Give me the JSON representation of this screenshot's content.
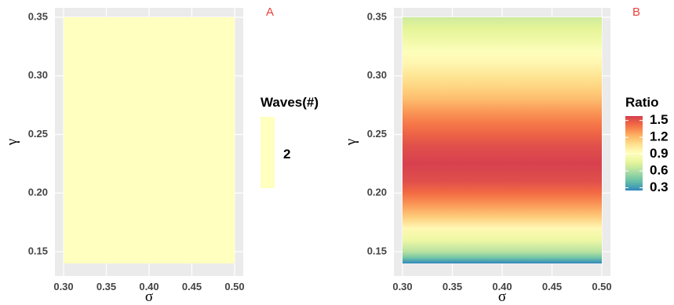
{
  "chart_data": [
    {
      "type": "heatmap",
      "panel_label": "A",
      "xlabel": "σ",
      "ylabel": "γ",
      "xlim": [
        0.3,
        0.5
      ],
      "ylim": [
        0.14,
        0.35
      ],
      "x_ticks": [
        "0.30",
        "0.35",
        "0.40",
        "0.45",
        "0.50"
      ],
      "y_ticks": [
        "0.15",
        "0.20",
        "0.25",
        "0.30",
        "0.35"
      ],
      "legend": {
        "title": "Waves(#)",
        "type": "discrete",
        "entries": [
          {
            "label": "2",
            "color": "#ffffbf"
          }
        ]
      },
      "value": 2,
      "colors": {
        "fill": "#ffffbf",
        "panel_background": "#ebebeb",
        "grid": "#ffffff"
      }
    },
    {
      "type": "heatmap",
      "panel_label": "B",
      "xlabel": "σ",
      "ylabel": "γ",
      "xlim": [
        0.3,
        0.5
      ],
      "ylim": [
        0.14,
        0.35
      ],
      "x_ticks": [
        "0.30",
        "0.35",
        "0.40",
        "0.45",
        "0.50"
      ],
      "y_ticks": [
        "0.15",
        "0.20",
        "0.25",
        "0.30",
        "0.35"
      ],
      "legend": {
        "title": "Ratio",
        "type": "continuous",
        "palette": "Spectral",
        "labels": [
          "1.5",
          "1.2",
          "0.9",
          "0.6",
          "0.3"
        ],
        "label_values": [
          1.5,
          1.2,
          0.9,
          0.6,
          0.3
        ],
        "range": [
          0.25,
          1.58
        ]
      },
      "ratio_profile": [
        {
          "gamma": 0.14,
          "ratio": 0.25
        },
        {
          "gamma": 0.145,
          "ratio": 0.45
        },
        {
          "gamma": 0.15,
          "ratio": 0.62
        },
        {
          "gamma": 0.16,
          "ratio": 0.8
        },
        {
          "gamma": 0.17,
          "ratio": 0.95
        },
        {
          "gamma": 0.18,
          "ratio": 1.15
        },
        {
          "gamma": 0.19,
          "ratio": 1.3
        },
        {
          "gamma": 0.2,
          "ratio": 1.42
        },
        {
          "gamma": 0.21,
          "ratio": 1.52
        },
        {
          "gamma": 0.225,
          "ratio": 1.57
        },
        {
          "gamma": 0.24,
          "ratio": 1.52
        },
        {
          "gamma": 0.25,
          "ratio": 1.45
        },
        {
          "gamma": 0.26,
          "ratio": 1.38
        },
        {
          "gamma": 0.27,
          "ratio": 1.3
        },
        {
          "gamma": 0.28,
          "ratio": 1.2
        },
        {
          "gamma": 0.29,
          "ratio": 1.12
        },
        {
          "gamma": 0.3,
          "ratio": 1.05
        },
        {
          "gamma": 0.31,
          "ratio": 0.97
        },
        {
          "gamma": 0.32,
          "ratio": 0.9
        },
        {
          "gamma": 0.33,
          "ratio": 0.82
        },
        {
          "gamma": 0.34,
          "ratio": 0.75
        },
        {
          "gamma": 0.35,
          "ratio": 0.68
        }
      ],
      "colors": {
        "panel_background": "#ebebeb",
        "grid": "#ffffff"
      }
    }
  ]
}
